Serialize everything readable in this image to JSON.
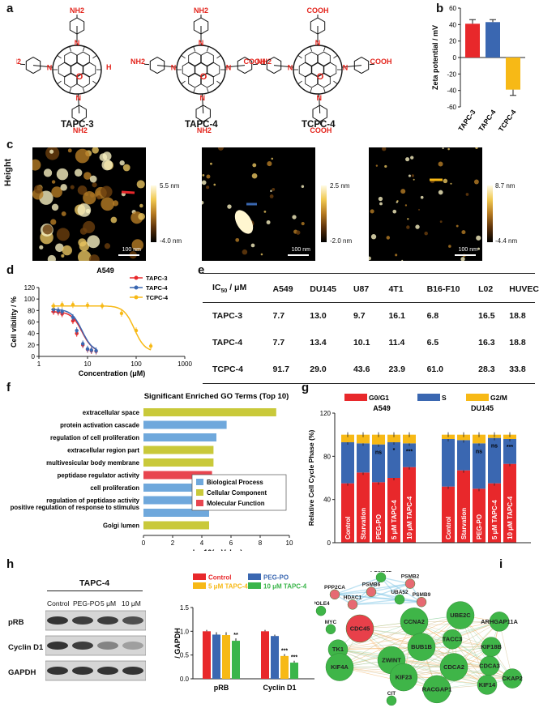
{
  "panel_labels": {
    "a": "a",
    "b": "b",
    "c": "c",
    "d": "d",
    "e": "e",
    "f": "f",
    "g": "g",
    "h": "h",
    "i": "i"
  },
  "panel_a": {
    "compounds": [
      "TAPC-3",
      "TAPC-4",
      "TCPC-4"
    ],
    "groups": {
      "amine": "NH2",
      "acid": "COOH",
      "n": "N",
      "o": "O",
      "h": "H"
    },
    "colors": {
      "substituent": "#e3231b",
      "cage": "#111111"
    }
  },
  "panel_c": {
    "row_label": "Height",
    "scalebar": "100 nm",
    "images": [
      {
        "max": "5.5 nm",
        "min": "-4.0 nm"
      },
      {
        "max": "2.5 nm",
        "min": "-2.0 nm"
      },
      {
        "max": "8.7 nm",
        "min": "-4.4 nm"
      }
    ]
  },
  "panel_e": {
    "header": [
      "IC50 / μM",
      "A549",
      "DU145",
      "U87",
      "4T1",
      "B16-F10",
      "L02",
      "HUVEC"
    ],
    "ic_main": "IC",
    "ic_sub": "50",
    "ic_unit": "/ μM",
    "rows": [
      {
        "name": "TAPC-3",
        "values": [
          "7.7",
          "13.0",
          "9.7",
          "16.1",
          "6.8",
          "16.5",
          "18.8"
        ]
      },
      {
        "name": "TAPC-4",
        "values": [
          "7.7",
          "13.4",
          "10.1",
          "11.4",
          "6.5",
          "16.3",
          "18.8"
        ]
      },
      {
        "name": "TCPC-4",
        "values": [
          "91.7",
          "29.0",
          "43.6",
          "23.9",
          "61.0",
          "28.3",
          "33.8"
        ]
      }
    ]
  },
  "panel_h_blot": {
    "title": "TAPC-4",
    "lanes": [
      "Control",
      "PEG-PO",
      "5 μM",
      "10 μM"
    ],
    "rows": [
      "pRB",
      "Cyclin D1",
      "GAPDH"
    ]
  },
  "chart_data": [
    {
      "id": "b",
      "type": "bar",
      "categories": [
        "TAPC-3",
        "TAPC-4",
        "TCPC-4"
      ],
      "values": [
        41,
        43,
        -39
      ],
      "errors": [
        5,
        3,
        7
      ],
      "colors": [
        "#e8282b",
        "#3a67b1",
        "#f7b916"
      ],
      "ylabel": "Zeta potential / mV",
      "ylim": [
        -60,
        60
      ],
      "yticks": [
        "60",
        "40",
        "20",
        "0",
        "-20",
        "-40",
        "-60"
      ]
    },
    {
      "id": "d",
      "type": "line",
      "title": "A549",
      "xlabel": "Concentration (μM)",
      "ylabel": "Cell vibility / %",
      "xscale": "log",
      "xlim": [
        1,
        1000
      ],
      "ylim": [
        0,
        120
      ],
      "xticks": [
        "1",
        "10",
        "100",
        "1000"
      ],
      "yticks": [
        "0",
        "20",
        "40",
        "60",
        "80",
        "100",
        "120"
      ],
      "series": [
        {
          "name": "TAPC-3",
          "color": "#e8282b",
          "marker": "circle",
          "x": [
            2,
            2.5,
            3,
            5,
            6,
            8,
            10,
            12,
            15
          ],
          "y": [
            78,
            77,
            74,
            62,
            40,
            20,
            12,
            10,
            9
          ],
          "ic50": 7.7
        },
        {
          "name": "TAPC-4",
          "color": "#3a67b1",
          "marker": "triangle",
          "x": [
            2,
            2.5,
            3,
            5,
            6,
            8,
            10,
            12,
            15
          ],
          "y": [
            82,
            80,
            78,
            68,
            45,
            22,
            13,
            11,
            10
          ],
          "ic50": 7.7
        },
        {
          "name": "TCPC-4",
          "color": "#f7b916",
          "marker": "triangle-down",
          "x": [
            2,
            3,
            5,
            10,
            20,
            50,
            100,
            200
          ],
          "y": [
            88,
            90,
            90,
            89,
            88,
            75,
            45,
            18
          ],
          "ic50": 91.7
        }
      ]
    },
    {
      "id": "f",
      "type": "bar",
      "orientation": "horizontal",
      "title": "Significant Enriched GO Terms (Top 10)",
      "xlabel": "-log10(p-Value)",
      "xlim": [
        0,
        10
      ],
      "xticks": [
        "0",
        "2",
        "4",
        "6",
        "8",
        "10"
      ],
      "categories": [
        "extracellular space",
        "protein activation cascade",
        "regulation of cell proliferation",
        "extracellular region part",
        "multivesicular body membrane",
        "peptidase regulator activity",
        "cell proliferation",
        "regulation of peptidase activity",
        "positive regulation of response to stimulus",
        "Golgi lumen"
      ],
      "values": [
        9.1,
        5.7,
        5.0,
        4.8,
        4.8,
        4.7,
        4.6,
        4.6,
        4.5,
        4.5
      ],
      "groups": [
        "Cellular Component",
        "Biological Process",
        "Biological Process",
        "Cellular Component",
        "Cellular Component",
        "Molecular Function",
        "Biological Process",
        "Biological Process",
        "Biological Process",
        "Cellular Component"
      ],
      "legend": [
        {
          "name": "Biological Process",
          "color": "#6fa8dc"
        },
        {
          "name": "Cellular Component",
          "color": "#c9c93a"
        },
        {
          "name": "Molecular Function",
          "color": "#e8454f"
        }
      ]
    },
    {
      "id": "g",
      "type": "bar",
      "stacked": true,
      "ylabel": "Relative Cell Cycle Phase (%)",
      "ylim": [
        0,
        120
      ],
      "yticks": [
        "0",
        "40",
        "80",
        "120"
      ],
      "groups": [
        "A549",
        "DU145"
      ],
      "categories": [
        "Control",
        "Starvation",
        "PEG-PO",
        "5 μM TAPC-4",
        "10 μM TAPC-4"
      ],
      "series": [
        {
          "name": "G0/G1",
          "color": "#e8282b",
          "values": [
            [
              55,
              65,
              56,
              60,
              70
            ],
            [
              52,
              67,
              50,
              55,
              73
            ]
          ]
        },
        {
          "name": "S",
          "color": "#3a67b1",
          "values": [
            [
              38,
              27,
              35,
              33,
              22
            ],
            [
              44,
              28,
              42,
              42,
              23
            ]
          ]
        },
        {
          "name": "G2/M",
          "color": "#f7b916",
          "values": [
            [
              7,
              8,
              9,
              7,
              8
            ],
            [
              4,
              5,
              8,
              3,
              4
            ]
          ]
        }
      ],
      "annotations": [
        [
          "",
          "",
          "ns",
          "*",
          "***"
        ],
        [
          "",
          "",
          "ns",
          "ns",
          "***"
        ]
      ]
    },
    {
      "id": "h",
      "type": "bar",
      "ylabel": "/ GAPDH",
      "ylim": [
        0,
        1.5
      ],
      "yticks": [
        "0.0",
        "0.5",
        "1.0",
        "1.5"
      ],
      "categories": [
        "pRB",
        "Cyclin D1"
      ],
      "series": [
        {
          "name": "Control",
          "color": "#e8282b",
          "values": [
            1.0,
            1.0
          ],
          "errors": [
            0.03,
            0.03
          ]
        },
        {
          "name": "PEG-PO",
          "color": "#3a67b1",
          "values": [
            0.93,
            0.9
          ],
          "errors": [
            0.05,
            0.03
          ]
        },
        {
          "name": "5 μM TAPC-4",
          "color": "#f7b916",
          "values": [
            0.92,
            0.48
          ],
          "errors": [
            0.06,
            0.04
          ]
        },
        {
          "name": "10 μM TAPC-4",
          "color": "#3ab54a",
          "values": [
            0.8,
            0.34
          ],
          "errors": [
            0.05,
            0.04
          ]
        }
      ],
      "annotations": [
        [
          "",
          "",
          "",
          "**"
        ],
        [
          "",
          "",
          "***",
          "***"
        ]
      ]
    },
    {
      "id": "i",
      "type": "network",
      "nodes": [
        {
          "name": "PSMD12",
          "size": "small",
          "color": "green"
        },
        {
          "name": "PSMB2",
          "size": "small",
          "color": "red"
        },
        {
          "name": "PPP2CA",
          "size": "small",
          "color": "red"
        },
        {
          "name": "PSMB6",
          "size": "small",
          "color": "red"
        },
        {
          "name": "UBA52",
          "size": "small",
          "color": "green"
        },
        {
          "name": "PSMB9",
          "size": "small",
          "color": "red"
        },
        {
          "name": "HDAC1",
          "size": "small",
          "color": "red"
        },
        {
          "name": "POLE4",
          "size": "small",
          "color": "green"
        },
        {
          "name": "MYC",
          "size": "small",
          "color": "green"
        },
        {
          "name": "CDC45",
          "size": "large",
          "color": "red"
        },
        {
          "name": "CCNA2",
          "size": "large",
          "color": "green"
        },
        {
          "name": "UBE2C",
          "size": "large",
          "color": "green"
        },
        {
          "name": "ARHGAP11A",
          "size": "medium",
          "color": "green"
        },
        {
          "name": "TACC3",
          "size": "medium",
          "color": "green"
        },
        {
          "name": "KIF18B",
          "size": "medium",
          "color": "green"
        },
        {
          "name": "BUB1B",
          "size": "large",
          "color": "green"
        },
        {
          "name": "TK1",
          "size": "medium",
          "color": "green"
        },
        {
          "name": "ZWINT",
          "size": "large",
          "color": "green"
        },
        {
          "name": "CDCA3",
          "size": "medium",
          "color": "green"
        },
        {
          "name": "KIF4A",
          "size": "large",
          "color": "green"
        },
        {
          "name": "CDCA2",
          "size": "large",
          "color": "green"
        },
        {
          "name": "KIF23",
          "size": "large",
          "color": "green"
        },
        {
          "name": "CKAP2",
          "size": "medium",
          "color": "green"
        },
        {
          "name": "KIF14",
          "size": "medium",
          "color": "green"
        },
        {
          "name": "RACGAP1",
          "size": "large",
          "color": "green"
        },
        {
          "name": "CIT",
          "size": "small",
          "color": "green"
        }
      ]
    }
  ]
}
